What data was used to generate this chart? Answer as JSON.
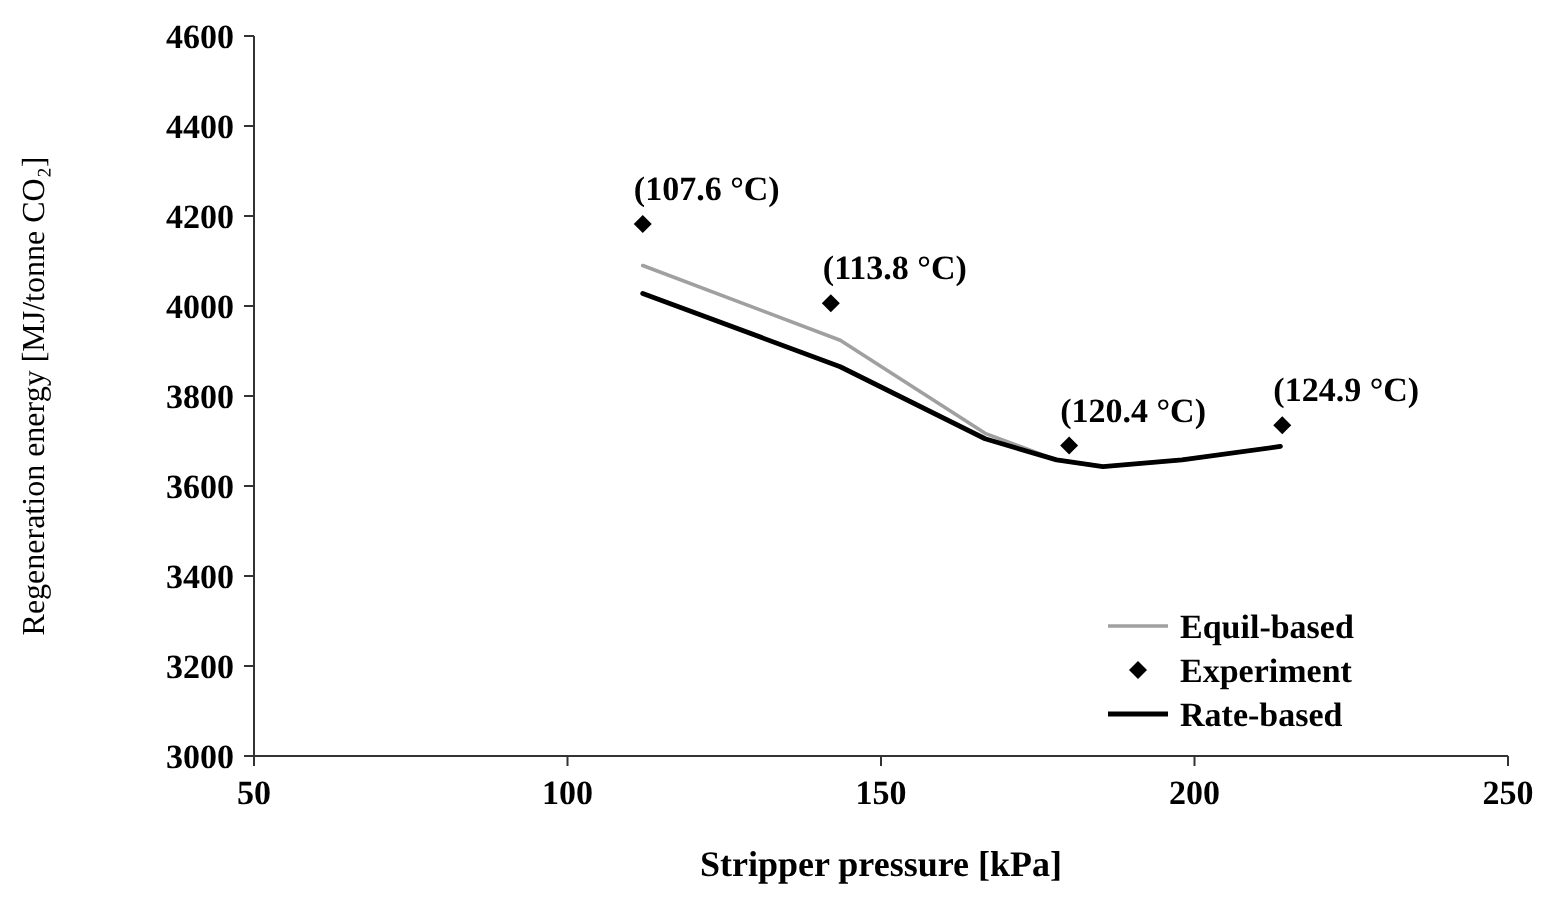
{
  "chart_data": {
    "type": "line",
    "xlabel": "Stripper pressure [kPa]",
    "ylabel": "Regeneration energy [MJ/tonne CO₂]",
    "xlim": [
      50,
      250
    ],
    "xticks": [
      50,
      100,
      150,
      200,
      250
    ],
    "ylim": [
      3000,
      4600
    ],
    "yticks": [
      3000,
      3200,
      3400,
      3600,
      3800,
      4000,
      4200,
      4400,
      4600
    ],
    "grid": false,
    "legend": "bottom right",
    "series": [
      {
        "name": "Equil-based",
        "color": "#a0a0a0",
        "marker": "none",
        "x": [
          112,
          143.5,
          166.6,
          178,
          185.4,
          198,
          213.7
        ],
        "values": [
          4090,
          3924,
          3717,
          3658,
          3643,
          3658,
          3688
        ]
      },
      {
        "name": "Experiment",
        "type": "scatter",
        "color": "#000000",
        "marker": "diamond",
        "x": [
          112,
          142,
          180,
          214
        ],
        "values": [
          4182,
          4006,
          3690,
          3735
        ]
      },
      {
        "name": "Rate-based",
        "color": "#000000",
        "marker": "none",
        "x": [
          112,
          143.5,
          166.6,
          178,
          185.4,
          198,
          213.7
        ],
        "values": [
          4028,
          3865,
          3705,
          3658,
          3643,
          3658,
          3688
        ]
      }
    ],
    "annotations": [
      {
        "text": "(107.6 °C)",
        "x": 112,
        "y": 4182
      },
      {
        "text": "(113.8 °C)",
        "x": 142,
        "y": 4006
      },
      {
        "text": "(120.4 °C)",
        "x": 180,
        "y": 3690
      },
      {
        "text": "(124.9 °C)",
        "x": 214,
        "y": 3735
      }
    ]
  }
}
